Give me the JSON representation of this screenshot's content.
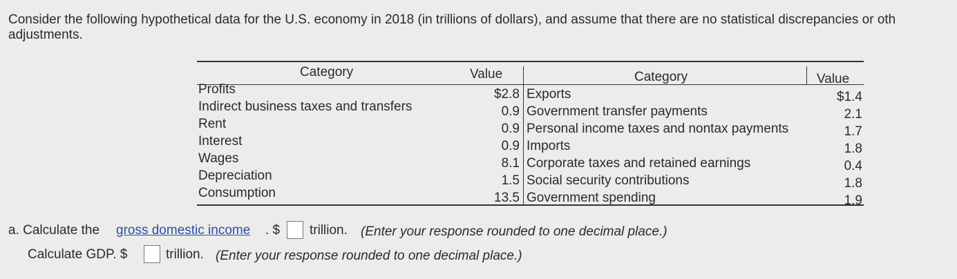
{
  "intro": [
    "Consider the following hypothetical data for the U.S. economy in 2018 (in trillions of dollars), and assume that there are no statistical discrepancies or oth",
    "adjustments."
  ],
  "table": {
    "headers": [
      "Category",
      "Value",
      "Category",
      "Value"
    ],
    "rows": [
      [
        "Profits",
        "$2.8",
        "Exports",
        "$1.4"
      ],
      [
        "Indirect business taxes and transfers",
        "0.9",
        "Government transfer payments",
        "2.1"
      ],
      [
        "Rent",
        "0.9",
        "Personal income taxes and nontax payments",
        "1.7"
      ],
      [
        "Interest",
        "0.9",
        "Imports",
        "1.8"
      ],
      [
        "Wages",
        "8.1",
        "Corporate taxes and retained earnings",
        "0.4"
      ],
      [
        "Depreciation",
        "1.5",
        "Social security contributions",
        "1.8"
      ],
      [
        "Consumption",
        "13.5",
        "Government spending",
        "1.9"
      ]
    ]
  },
  "questions": [
    {
      "prefix": "a. Calculate the",
      "link": "gross domestic income",
      "dollar": ". $",
      "unit": "trillion.",
      "hint": "(Enter your response rounded to one decimal place.)"
    },
    {
      "prefix": "Calculate GDP. $",
      "unit": "trillion.",
      "hint": "(Enter your response rounded to one decimal place.)"
    }
  ]
}
